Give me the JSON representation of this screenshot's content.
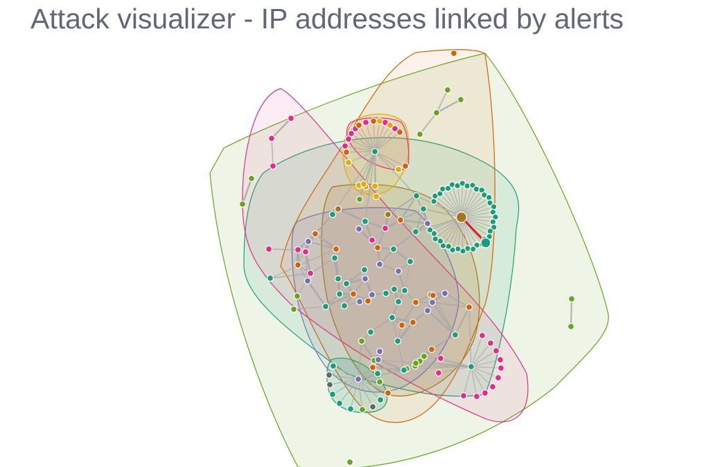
{
  "title": "Attack visualizer - IP addresses linked by alerts",
  "palette": {
    "green": "#1b9e77",
    "orange": "#d95f02",
    "purple": "#7570b3",
    "pink": "#e7298a",
    "lime": "#66a61e",
    "yellow": "#e6ab02",
    "brown": "#a6761d",
    "gray": "#666666",
    "highlight_edge": "#e41a1c",
    "edge": "#a8a8a8",
    "node_stroke": "#ffffff"
  },
  "groups": [
    {
      "name": "lime",
      "color": "#66a61e"
    },
    {
      "name": "green",
      "color": "#1b9e77"
    },
    {
      "name": "pink",
      "color": "#e7298a"
    },
    {
      "name": "orange",
      "color": "#d95f02"
    },
    {
      "name": "brown",
      "color": "#a6761d"
    },
    {
      "name": "purple",
      "color": "#7570b3"
    },
    {
      "name": "yellow",
      "color": "#e6ab02"
    },
    {
      "name": "teal",
      "color": "#1b9e77"
    }
  ]
}
